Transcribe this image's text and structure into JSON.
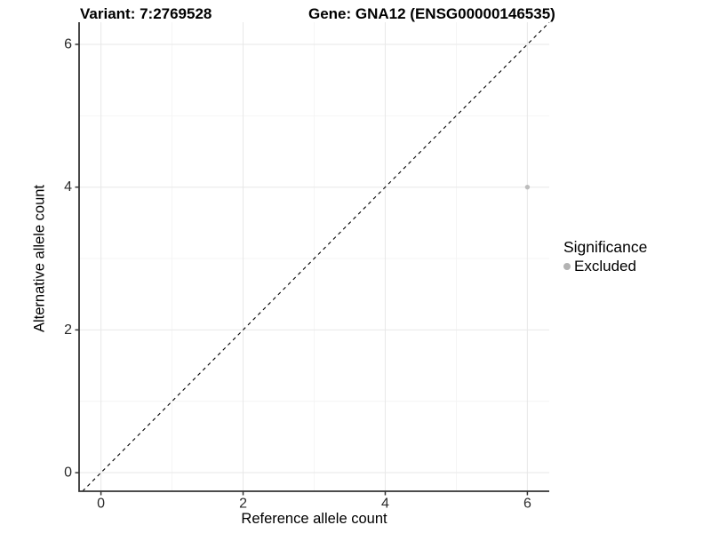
{
  "chart_data": {
    "type": "scatter",
    "title": "Variant: 7:2769528        Gene: GNA12 (ENSG00000146535)",
    "title_parts": {
      "variant": "Variant: 7:2769528",
      "gene": "Gene: GNA12 (ENSG00000146535)"
    },
    "xlabel": "Reference allele count",
    "ylabel": "Alternative allele count",
    "points": [
      {
        "x": 6,
        "y": 4,
        "significance": "Excluded"
      }
    ],
    "reference_line": {
      "kind": "identity",
      "equation": "y = x",
      "style": "dashed",
      "color": "#000000"
    },
    "x_ticks": [
      0,
      2,
      4,
      6
    ],
    "y_ticks": [
      0,
      2,
      4,
      6
    ],
    "x_minor_ticks": [
      1,
      3,
      5
    ],
    "y_minor_ticks": [
      1,
      3,
      5
    ],
    "xlim": [
      -0.3075,
      6.3075
    ],
    "ylim": [
      -0.26,
      6.31
    ],
    "grid": true,
    "legend_position": "right",
    "legend": {
      "title": "Significance",
      "items": [
        {
          "label": "Excluded",
          "color": "#b3b3b3"
        }
      ]
    }
  },
  "colors": {
    "background": "#ffffff",
    "axis": "#333333",
    "tick_label": "#2b2b2b",
    "grid_major": "#e9e9e9",
    "grid_minor": "#f4f4f4",
    "point": "#bdbdbd",
    "legend_point": "#b3b3b3",
    "reference_line": "#000000"
  }
}
